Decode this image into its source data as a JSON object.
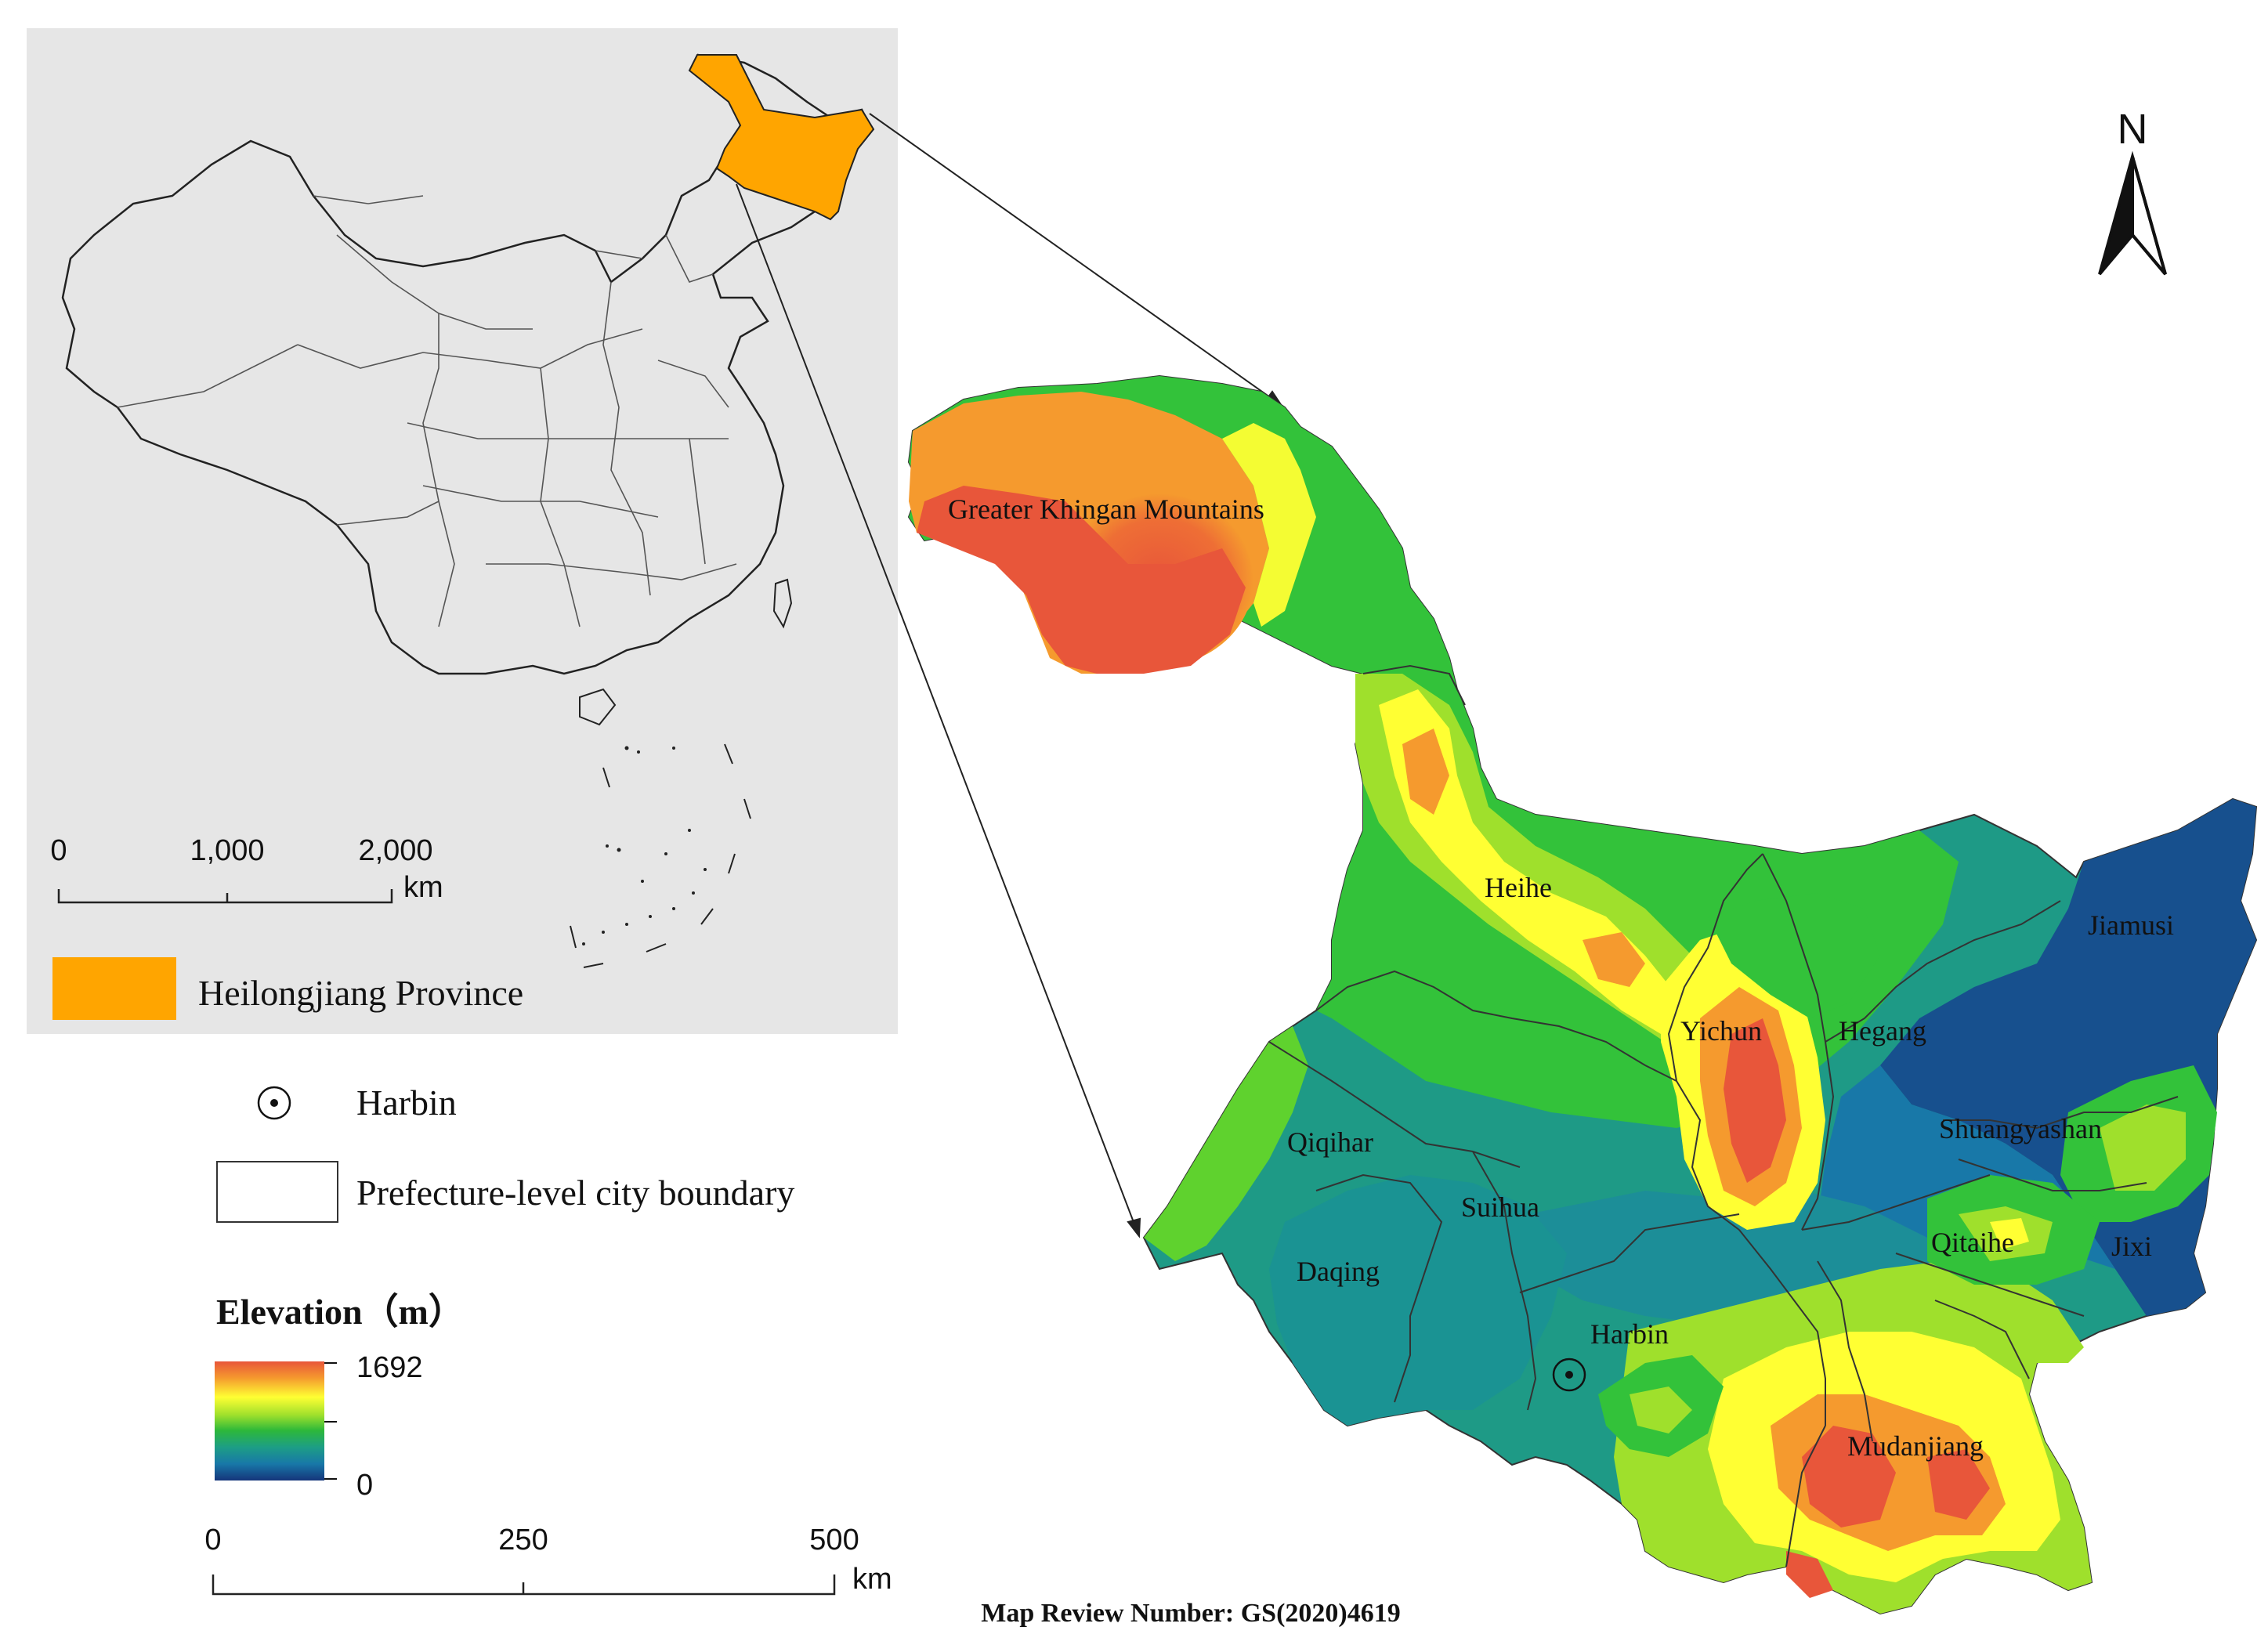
{
  "inset": {
    "scale": {
      "ticks": [
        "0",
        "1,000",
        "2,000"
      ],
      "unit": "km"
    },
    "legend_label": "Heilongjiang Province",
    "highlight_color": "#FFA500",
    "background_color": "#E6E6E6"
  },
  "north_arrow": {
    "label": "N"
  },
  "regions": [
    {
      "name": "Greater Khingan Mountains"
    },
    {
      "name": "Heihe"
    },
    {
      "name": "Yichun"
    },
    {
      "name": "Hegang"
    },
    {
      "name": "Jiamusi"
    },
    {
      "name": "Shuangyashan"
    },
    {
      "name": "Qiqihar"
    },
    {
      "name": "Suihua"
    },
    {
      "name": "Daqing"
    },
    {
      "name": "Qitaihe"
    },
    {
      "name": "Jixi"
    },
    {
      "name": "Harbin"
    },
    {
      "name": "Mudanjiang"
    }
  ],
  "legend": {
    "capital_label": "Harbin",
    "boundary_label": "Prefecture-level city boundary",
    "elevation_title": "Elevation（m）",
    "elevation_max": "1692",
    "elevation_min": "0",
    "ramp_colors": [
      "#E8563A",
      "#F59A2E",
      "#FFFF33",
      "#9FE02C",
      "#2DB83A",
      "#1D9E85",
      "#1878A8",
      "#15357A"
    ]
  },
  "main_scale": {
    "ticks": [
      "0",
      "250",
      "500"
    ],
    "unit": "km"
  },
  "footer": "Map Review Number: GS(2020)4619"
}
